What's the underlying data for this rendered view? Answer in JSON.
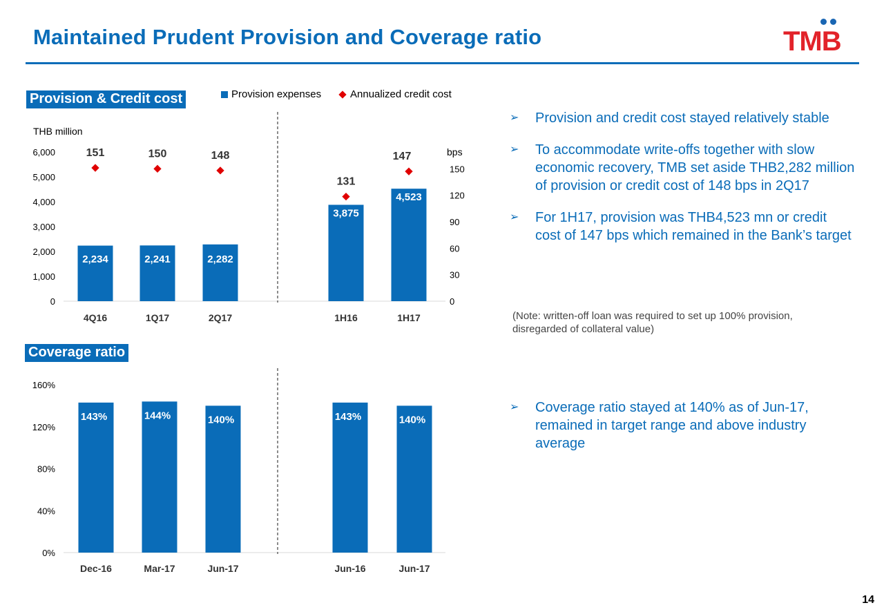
{
  "title": "Maintained Prudent Provision and Coverage ratio",
  "logo": {
    "text": "TMB",
    "brand_red": "#e2232a",
    "brand_blue": "#1a66b3"
  },
  "accent_color": "#0a6cb8",
  "marker_color": "#e00000",
  "page_number": "14",
  "provision_section": {
    "label": "Provision & Credit cost",
    "units_left": "THB million",
    "units_right": "bps"
  },
  "coverage_section": {
    "label": "Coverage ratio"
  },
  "legend": {
    "bar": "Provision expenses",
    "marker": "Annualized credit cost"
  },
  "chart_data": [
    {
      "type": "bar",
      "title": "Provision & Credit cost",
      "ylabel": "THB million",
      "y2label": "bps",
      "categories": [
        "4Q16",
        "1Q17",
        "2Q17",
        "1H16",
        "1H17"
      ],
      "ylim": [
        0,
        6000
      ],
      "y2lim": [
        0,
        180
      ],
      "yticks": [
        "0",
        "1,000",
        "2,000",
        "3,000",
        "4,000",
        "5,000",
        "6,000"
      ],
      "y2ticks": [
        "0",
        "30",
        "60",
        "90",
        "120",
        "150"
      ],
      "series": [
        {
          "name": "Provision expenses",
          "kind": "bar",
          "values": [
            2234,
            2241,
            2282,
            3875,
            4523
          ],
          "labels": [
            "2,234",
            "2,241",
            "2,282",
            "3,875",
            "4,523"
          ]
        },
        {
          "name": "Annualized credit cost",
          "kind": "marker",
          "axis": "right",
          "values": [
            151,
            150,
            148,
            131,
            147
          ],
          "labels": [
            "151",
            "150",
            "148",
            "131",
            "147"
          ]
        }
      ]
    },
    {
      "type": "bar",
      "title": "Coverage ratio",
      "categories": [
        "Dec-16",
        "Mar-17",
        "Jun-17",
        "Jun-16",
        "Jun-17"
      ],
      "ylim": [
        0,
        160
      ],
      "yticks": [
        "0%",
        "40%",
        "80%",
        "120%",
        "160%"
      ],
      "series": [
        {
          "name": "Coverage ratio",
          "values": [
            143,
            144,
            140,
            143,
            140
          ],
          "labels": [
            "143%",
            "144%",
            "140%",
            "143%",
            "140%"
          ]
        }
      ]
    }
  ],
  "bullets_top": [
    "Provision and credit cost stayed relatively stable",
    "To accommodate write-offs together with slow economic recovery, TMB set aside THB2,282 million of provision or credit cost of 148 bps in 2Q17",
    "For 1H17, provision was THB4,523 mn or credit cost of 147 bps which remained in the Bank’s target"
  ],
  "note": "(Note: written-off loan was required to set up 100% provision, disregarded of collateral value)",
  "bullets_bottom": [
    "Coverage ratio stayed at 140% as of Jun-17, remained in target range and above industry average"
  ]
}
